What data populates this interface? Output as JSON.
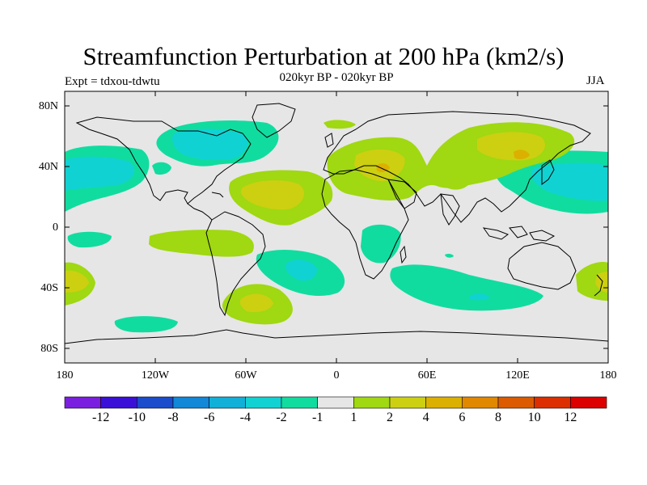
{
  "title": "Streamfunction Perturbation at 200 hPa (km2/s)",
  "subtitle": "020kyr BP - 020kyr BP",
  "experiment": "Expt = tdxou-tdwtu",
  "season": "JJA",
  "axes": {
    "lat_labels": [
      "80N",
      "40N",
      "0",
      "40S",
      "80S"
    ],
    "lon_labels": [
      "180",
      "120W",
      "60W",
      "0",
      "60E",
      "120E",
      "180"
    ]
  },
  "colorbar": {
    "labels": [
      "-12",
      "-10",
      "-8",
      "-6",
      "-4",
      "-2",
      "-1",
      "1",
      "2",
      "4",
      "6",
      "8",
      "10",
      "12"
    ],
    "colors": [
      "#7a1fe0",
      "#3a10d8",
      "#1a4ccc",
      "#1188d8",
      "#11b0d8",
      "#11d2d2",
      "#11dca0",
      "#e6e6e6",
      "#a0d811",
      "#ccd011",
      "#dcb000",
      "#e08800",
      "#dc5a00",
      "#dc2e00",
      "#dc0000"
    ]
  },
  "fill_colors": {
    "background": "#e6e6e6",
    "neg1": "#11dca0",
    "neg2": "#11d2d2",
    "pos1": "#a0d811",
    "pos2": "#ccd011",
    "pos3": "#dcb000"
  }
}
